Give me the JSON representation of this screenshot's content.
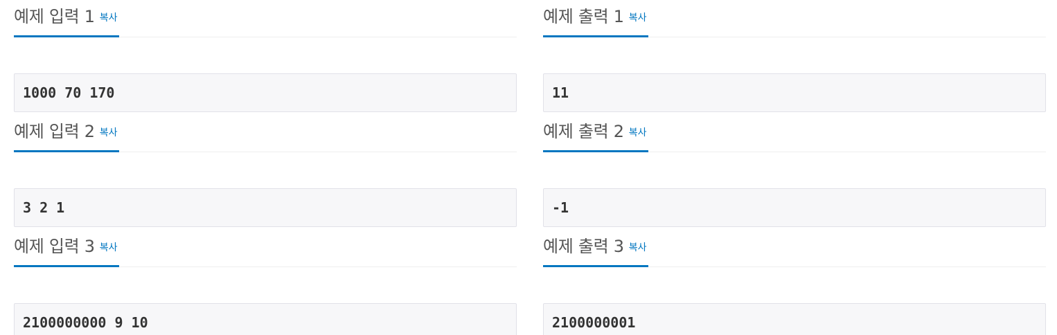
{
  "inputs": [
    {
      "title": "예제 입력 1",
      "copy_label": "복사",
      "value": "1000 70 170"
    },
    {
      "title": "예제 입력 2",
      "copy_label": "복사",
      "value": "3 2 1"
    },
    {
      "title": "예제 입력 3",
      "copy_label": "복사",
      "value": "2100000000 9 10"
    }
  ],
  "outputs": [
    {
      "title": "예제 출력 1",
      "copy_label": "복사",
      "value": "11"
    },
    {
      "title": "예제 출력 2",
      "copy_label": "복사",
      "value": "-1"
    },
    {
      "title": "예제 출력 3",
      "copy_label": "복사",
      "value": "2100000001"
    }
  ],
  "colors": {
    "accent": "#0076c0",
    "title_text": "#555555",
    "sample_background": "#f7f7f9",
    "sample_border": "#e1e1e8"
  }
}
